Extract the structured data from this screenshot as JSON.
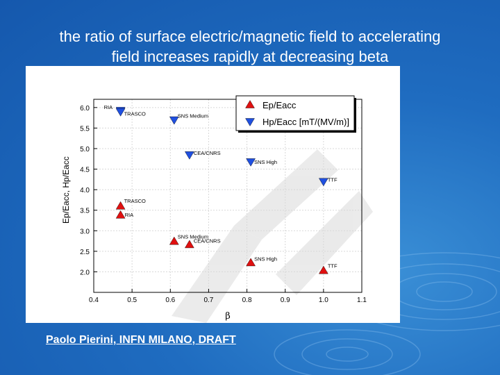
{
  "slide": {
    "title_line1": "the ratio of surface electric/magnetic field to accelerating",
    "title_line2": "field increases rapidly at decreasing beta",
    "footer": "Paolo Pierini, INFN MILANO, DRAFT"
  },
  "chart_data": {
    "type": "scatter",
    "xlabel": "β",
    "ylabel": "Ep/Eacc, Hp/Eacc",
    "xlim": [
      0.4,
      1.1
    ],
    "ylim": [
      1.5,
      6.2
    ],
    "xticks": [
      "0.4",
      "0.5",
      "0.6",
      "0.7",
      "0.8",
      "0.9",
      "1.0",
      "1.1"
    ],
    "yticks": [
      "2.0",
      "2.5",
      "3.0",
      "3.5",
      "4.0",
      "4.5",
      "5.0",
      "5.5",
      "6.0"
    ],
    "grid": true,
    "legend_position": "top-right",
    "series": [
      {
        "name": "Ep/Eacc",
        "marker": "triangle-up",
        "color": "#e01010",
        "points": [
          {
            "x": 0.47,
            "y": 3.6,
            "label": "TRASCO"
          },
          {
            "x": 0.47,
            "y": 3.38,
            "label": "RIA"
          },
          {
            "x": 0.61,
            "y": 2.74,
            "label": "SNS Medium"
          },
          {
            "x": 0.65,
            "y": 2.66,
            "label": "CEA/CNRS"
          },
          {
            "x": 0.81,
            "y": 2.22,
            "label": "SNS High"
          },
          {
            "x": 1.0,
            "y": 2.03,
            "label": "TTF"
          }
        ]
      },
      {
        "name": "Hp/Eacc [mT/(MV/m)]",
        "marker": "triangle-down",
        "color": "#2050e0",
        "points": [
          {
            "x": 0.47,
            "y": 5.93,
            "label": "RIA"
          },
          {
            "x": 0.47,
            "y": 5.9,
            "label": "TRASCO"
          },
          {
            "x": 0.61,
            "y": 5.7,
            "label": "SNS Medium"
          },
          {
            "x": 0.65,
            "y": 4.85,
            "label": "CEA/CNRS"
          },
          {
            "x": 0.81,
            "y": 4.68,
            "label": "SNS High"
          },
          {
            "x": 1.0,
            "y": 4.2,
            "label": "TTF"
          }
        ]
      }
    ]
  }
}
